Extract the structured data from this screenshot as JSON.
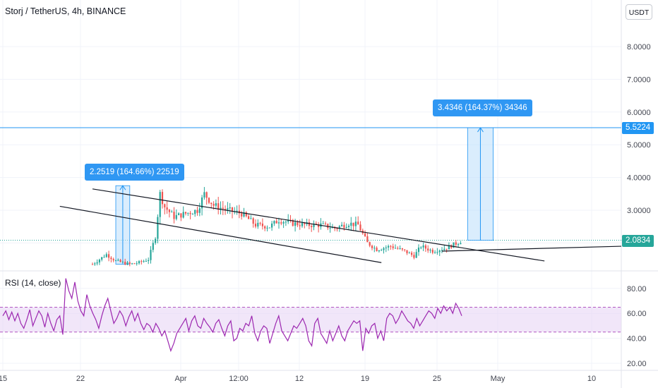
{
  "header": {
    "title": "Storj / TetherUS, 4h, BINANCE",
    "currency_button": "USDT"
  },
  "indicator": {
    "rsi_label": "RSI (14, close)"
  },
  "annotations": {
    "measure_1": "2.2519 (164.66%) 22519",
    "measure_2": "3.4346 (164.37%) 34346",
    "price_tag_target": "5.5224",
    "price_tag_last": "2.0834"
  },
  "colors": {
    "up": "#26a69a",
    "down": "#ef5350",
    "accent": "#2196f3",
    "rsi_line": "#9c27b0",
    "rsi_band": "#e8d6f5"
  },
  "chart_data": {
    "type": "candlestick",
    "title": "Storj / TetherUS, 4h, BINANCE",
    "y_axis": {
      "ticks": [
        2.0,
        3.0,
        4.0,
        5.0,
        6.0,
        7.0,
        8.0
      ],
      "tick_labels": [
        "",
        "3.0000",
        "4.0000",
        "5.0000",
        "6.0000",
        "7.0000",
        "8.0000"
      ],
      "range": [
        1.05,
        9.2
      ]
    },
    "x_axis": {
      "tick_labels": [
        "15",
        "22",
        "Apr",
        "12:00",
        "12",
        "19",
        "25",
        "May",
        "10"
      ]
    },
    "horizontal_lines": [
      5.5224,
      2.0834
    ],
    "price_path": [
      [
        0,
        1.35
      ],
      [
        6,
        1.65
      ],
      [
        10,
        1.45
      ],
      [
        16,
        1.35
      ],
      [
        20,
        1.4
      ],
      [
        24,
        1.5
      ],
      [
        27,
        2.2
      ],
      [
        29,
        3.5
      ],
      [
        31,
        3.1
      ],
      [
        35,
        2.8
      ],
      [
        40,
        2.9
      ],
      [
        45,
        3.0
      ],
      [
        48,
        3.5
      ],
      [
        52,
        3.15
      ],
      [
        58,
        3.0
      ],
      [
        64,
        2.9
      ],
      [
        70,
        2.55
      ],
      [
        76,
        2.5
      ],
      [
        80,
        2.7
      ],
      [
        86,
        2.6
      ],
      [
        92,
        2.55
      ],
      [
        98,
        2.55
      ],
      [
        104,
        2.45
      ],
      [
        110,
        2.6
      ],
      [
        114,
        2.55
      ],
      [
        118,
        2.0
      ],
      [
        122,
        1.8
      ],
      [
        128,
        1.9
      ],
      [
        134,
        1.75
      ],
      [
        138,
        1.6
      ],
      [
        141,
        1.9
      ],
      [
        146,
        1.75
      ],
      [
        152,
        1.85
      ],
      [
        158,
        2.05
      ]
    ],
    "price_bars": 158,
    "volume_note": "",
    "trend_lines": [
      {
        "from": [
          0,
          3.65
        ],
        "to": [
          194,
          1.45
        ]
      },
      {
        "from": [
          -14,
          3.12
        ],
        "to": [
          124,
          1.4
        ]
      }
    ],
    "measure_boxes": [
      {
        "x": [
          10,
          16
        ],
        "y": [
          1.35,
          3.75
        ],
        "label": "2.2519 (164.66%) 22519"
      },
      {
        "x": [
          161,
          172
        ],
        "y": [
          2.08,
          5.52
        ],
        "label": "3.4346 (164.37%) 34346"
      }
    ],
    "rsi": {
      "name": "RSI (14, close)",
      "ticks": [
        20,
        40,
        60,
        80
      ],
      "tick_labels": [
        "20.00",
        "40.00",
        "60.00",
        "80.00"
      ],
      "band": [
        45,
        55
      ],
      "range": [
        15,
        95
      ],
      "values": [
        58,
        62,
        55,
        61,
        54,
        60,
        52,
        48,
        55,
        63,
        50,
        56,
        62,
        58,
        49,
        60,
        52,
        46,
        55,
        58,
        43,
        88,
        78,
        72,
        85,
        70,
        62,
        58,
        75,
        66,
        60,
        55,
        48,
        58,
        66,
        72,
        62,
        52,
        56,
        62,
        58,
        50,
        57,
        62,
        54,
        60,
        52,
        47,
        52,
        50,
        45,
        52,
        48,
        42,
        46,
        38,
        30,
        36,
        44,
        48,
        52,
        56,
        46,
        54,
        58,
        50,
        48,
        56,
        52,
        49,
        45,
        52,
        55,
        48,
        42,
        50,
        54,
        38,
        40,
        48,
        46,
        52,
        50,
        58,
        44,
        38,
        46,
        50,
        48,
        36,
        44,
        52,
        58,
        46,
        42,
        38,
        44,
        50,
        48,
        52,
        56,
        50,
        38,
        34,
        52,
        56,
        44,
        40,
        36,
        46,
        38,
        44,
        50,
        42,
        38,
        46,
        50,
        54,
        52,
        54,
        30,
        48,
        44,
        50,
        52,
        40,
        46,
        38,
        56,
        60,
        58,
        52,
        56,
        62,
        58,
        54,
        52,
        48,
        56,
        50,
        54,
        58,
        62,
        60,
        56,
        64,
        60,
        66,
        62,
        65,
        60,
        68,
        64,
        58
      ]
    }
  }
}
